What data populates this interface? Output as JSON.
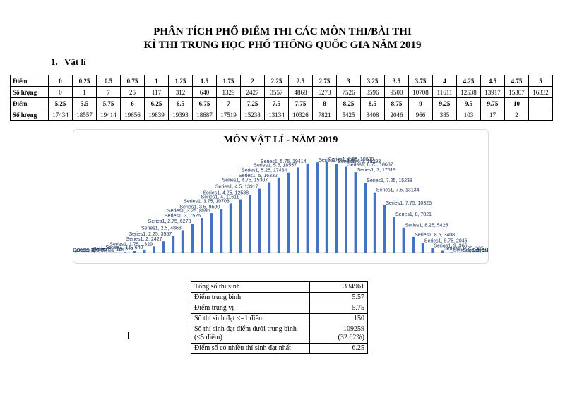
{
  "document": {
    "title_line1": "PHÂN TÍCH PHỔ ĐIỂM THI CÁC MÔN THI/BÀI THI",
    "title_line2": "KÌ THI TRUNG HỌC PHỔ THÔNG QUỐC GIA NĂM 2019",
    "section_number": "1.",
    "section_title": "Vật lí"
  },
  "score_table": {
    "rows": [
      {
        "label": "Điểm",
        "cells": [
          "0",
          "0.25",
          "0.5",
          "0.75",
          "1",
          "1.25",
          "1.5",
          "1.75",
          "2",
          "2.25",
          "2.5",
          "2.75",
          "3",
          "3.25",
          "3.5",
          "3.75",
          "4",
          "4.25",
          "4.5",
          "4.75",
          "5"
        ]
      },
      {
        "label": "Số lượng",
        "cells": [
          "0",
          "1",
          "7",
          "25",
          "117",
          "312",
          "640",
          "1329",
          "2427",
          "3557",
          "4868",
          "6273",
          "7526",
          "8596",
          "9500",
          "10708",
          "11611",
          "12538",
          "13917",
          "15307",
          "16332"
        ]
      },
      {
        "label": "Điểm",
        "cells": [
          "5.25",
          "5.5",
          "5.75",
          "6",
          "6.25",
          "6.5",
          "6.75",
          "7",
          "7.25",
          "7.5",
          "7.75",
          "8",
          "8.25",
          "8.5",
          "8.75",
          "9",
          "9.25",
          "9.5",
          "9.75",
          "10",
          ""
        ]
      },
      {
        "label": "Số lượng",
        "cells": [
          "17434",
          "18557",
          "19414",
          "19656",
          "19839",
          "19393",
          "18687",
          "17519",
          "15238",
          "13134",
          "10326",
          "7821",
          "5425",
          "3408",
          "2046",
          "966",
          "385",
          "103",
          "17",
          "2",
          ""
        ]
      }
    ]
  },
  "chart_data": {
    "type": "bar",
    "title": "MÔN VẬT LÍ - NĂM 2019",
    "series_name": "Series1",
    "categories": [
      "0",
      "0.25",
      "0.5",
      "0.75",
      "1",
      "1.25",
      "1.5",
      "1.75",
      "2",
      "2.25",
      "2.5",
      "2.75",
      "3",
      "3.25",
      "3.5",
      "3.75",
      "4",
      "4.25",
      "4.5",
      "4.75",
      "5",
      "5.25",
      "5.5",
      "5.75",
      "6",
      "6.25",
      "6.5",
      "6.75",
      "7",
      "7.25",
      "7.5",
      "7.75",
      "8",
      "8.25",
      "8.5",
      "8.75",
      "9",
      "9.25",
      "9.5",
      "9.75",
      "10"
    ],
    "values": [
      0,
      1,
      7,
      25,
      117,
      312,
      640,
      1329,
      2427,
      3557,
      4868,
      6273,
      7526,
      8596,
      9500,
      10708,
      11611,
      12538,
      13917,
      15307,
      16332,
      17434,
      18557,
      19414,
      19656,
      19839,
      19393,
      18687,
      17519,
      15238,
      13134,
      10326,
      7821,
      5425,
      3408,
      2046,
      966,
      385,
      103,
      17,
      2
    ],
    "ylim": [
      0,
      20000
    ],
    "grid": false,
    "legend": "none",
    "bar_color": "#4472c4",
    "label_color": "#1f3864"
  },
  "stats_table": {
    "rows": [
      {
        "label": "Tổng số thí sinh",
        "value": "334961",
        "sub": ""
      },
      {
        "label": "Điểm trung bình",
        "value": "5.57",
        "sub": ""
      },
      {
        "label": "Điểm trung vị",
        "value": "5.75",
        "sub": ""
      },
      {
        "label": "Số thí sinh đạt <=1 điểm",
        "value": "150",
        "sub": ""
      },
      {
        "label": "Số thí sinh đạt điểm dưới trung bình (<5 điểm)",
        "value": "109259",
        "sub": "(32.62%)"
      },
      {
        "label": "Điểm số có nhiều thí sinh đạt nhất",
        "value": "6.25",
        "sub": ""
      }
    ]
  }
}
